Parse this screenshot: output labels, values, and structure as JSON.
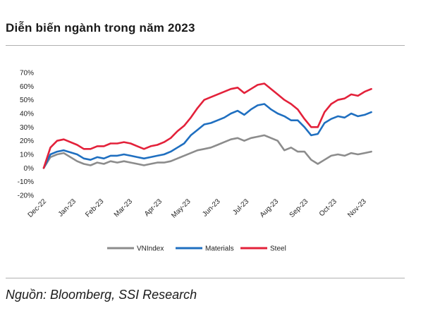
{
  "title": "Diễn biến ngành trong năm 2023",
  "source": "Nguồn: Bloomberg, SSI Research",
  "chart_data": {
    "type": "line",
    "ylim": [
      -0.2,
      0.7
    ],
    "yticks": [
      0.7,
      0.6,
      0.5,
      0.4,
      0.3,
      0.2,
      0.1,
      0.0,
      -0.1,
      -0.2
    ],
    "ytick_labels": [
      "70%",
      "60%",
      "50%",
      "40%",
      "30%",
      "20%",
      "10%",
      "0%",
      "-10%",
      "-20%"
    ],
    "x_tick_labels": [
      "Dec-22",
      "Jan-23",
      "Feb-23",
      "Mar-23",
      "Apr-23",
      "May-23",
      "Jun-23",
      "Jul-23",
      "Aug-23",
      "Sep-23",
      "Oct-23",
      "Nov-23"
    ],
    "x": [
      "2022-12-30",
      "2023-01-06",
      "2023-01-13",
      "2023-01-20",
      "2023-02-03",
      "2023-02-10",
      "2023-02-17",
      "2023-02-24",
      "2023-03-03",
      "2023-03-10",
      "2023-03-17",
      "2023-03-24",
      "2023-03-31",
      "2023-04-07",
      "2023-04-14",
      "2023-04-21",
      "2023-04-28",
      "2023-05-05",
      "2023-05-12",
      "2023-05-19",
      "2023-05-26",
      "2023-06-02",
      "2023-06-09",
      "2023-06-16",
      "2023-06-23",
      "2023-06-30",
      "2023-07-07",
      "2023-07-14",
      "2023-07-21",
      "2023-07-28",
      "2023-08-04",
      "2023-08-11",
      "2023-08-18",
      "2023-08-25",
      "2023-09-01",
      "2023-09-08",
      "2023-09-15",
      "2023-09-22",
      "2023-09-29",
      "2023-10-06",
      "2023-10-13",
      "2023-10-20",
      "2023-10-27",
      "2023-11-03",
      "2023-11-10",
      "2023-11-17",
      "2023-11-24",
      "2023-12-01",
      "2023-12-08"
    ],
    "series": [
      {
        "name": "VNIndex",
        "color": "#8c8c8c",
        "values": [
          0.0,
          0.08,
          0.1,
          0.11,
          0.05,
          0.03,
          0.02,
          0.04,
          0.03,
          0.05,
          0.04,
          0.05,
          0.04,
          0.03,
          0.02,
          0.03,
          0.04,
          0.04,
          0.05,
          0.07,
          0.09,
          0.11,
          0.13,
          0.14,
          0.15,
          0.17,
          0.19,
          0.21,
          0.22,
          0.2,
          0.22,
          0.23,
          0.24,
          0.22,
          0.2,
          0.13,
          0.15,
          0.12,
          0.12,
          0.06,
          0.03,
          0.06,
          0.09,
          0.1,
          0.09,
          0.11,
          0.1,
          0.11,
          0.12
        ]
      },
      {
        "name": "Materials",
        "color": "#1f6fc0",
        "values": [
          0.0,
          0.1,
          0.12,
          0.13,
          0.1,
          0.07,
          0.06,
          0.08,
          0.07,
          0.09,
          0.09,
          0.1,
          0.09,
          0.08,
          0.07,
          0.08,
          0.09,
          0.1,
          0.12,
          0.15,
          0.18,
          0.24,
          0.28,
          0.32,
          0.33,
          0.35,
          0.37,
          0.4,
          0.42,
          0.39,
          0.43,
          0.46,
          0.47,
          0.43,
          0.4,
          0.38,
          0.35,
          0.35,
          0.3,
          0.24,
          0.25,
          0.33,
          0.36,
          0.38,
          0.37,
          0.4,
          0.38,
          0.39,
          0.41
        ]
      },
      {
        "name": "Steel",
        "color": "#e3213a",
        "values": [
          0.0,
          0.15,
          0.2,
          0.21,
          0.17,
          0.14,
          0.14,
          0.16,
          0.16,
          0.18,
          0.18,
          0.19,
          0.18,
          0.16,
          0.14,
          0.16,
          0.17,
          0.19,
          0.22,
          0.27,
          0.31,
          0.37,
          0.44,
          0.5,
          0.52,
          0.54,
          0.56,
          0.58,
          0.59,
          0.55,
          0.58,
          0.61,
          0.62,
          0.58,
          0.54,
          0.5,
          0.47,
          0.43,
          0.36,
          0.3,
          0.3,
          0.41,
          0.47,
          0.5,
          0.51,
          0.54,
          0.53,
          0.56,
          0.58
        ]
      }
    ],
    "legend_position": "bottom",
    "grid": false
  }
}
